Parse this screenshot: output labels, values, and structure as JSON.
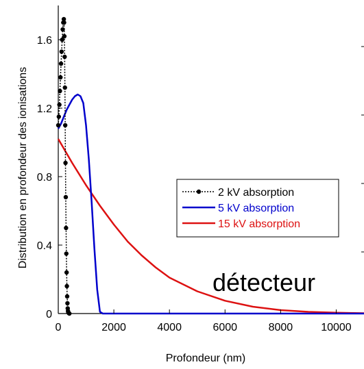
{
  "chart_data": {
    "type": "line",
    "title": "",
    "xlabel": "Profondeur (nm)",
    "ylabel": "Distribution en profondeur des ionisations",
    "xlim": [
      0,
      11000
    ],
    "ylim": [
      0,
      1.8
    ],
    "x_ticks": [
      "0",
      "2000",
      "4000",
      "6000",
      "8000",
      "10000"
    ],
    "x_tick_values": [
      0,
      2000,
      4000,
      6000,
      8000,
      10000
    ],
    "y_ticks": [
      "0",
      "0.4",
      "0.8",
      "1.2",
      "1.6"
    ],
    "y_tick_values": [
      0,
      0.4,
      0.8,
      1.2,
      1.6
    ],
    "grid": false,
    "legend_position": "center-right",
    "annotation": "détecteur",
    "series": [
      {
        "name": "2 kV absorption",
        "color": "#000000",
        "style": "dotted-markers",
        "x": [
          0,
          20,
          40,
          60,
          80,
          100,
          120,
          140,
          160,
          180,
          200,
          210,
          220,
          230,
          240,
          250,
          260,
          270,
          280,
          290,
          300,
          310,
          320,
          330,
          340,
          350,
          360,
          380,
          400
        ],
        "y": [
          1.1,
          1.15,
          1.22,
          1.3,
          1.38,
          1.46,
          1.53,
          1.6,
          1.66,
          1.7,
          1.72,
          1.7,
          1.62,
          1.5,
          1.32,
          1.1,
          0.88,
          0.68,
          0.5,
          0.35,
          0.24,
          0.16,
          0.1,
          0.06,
          0.03,
          0.015,
          0.007,
          0.002,
          0
        ]
      },
      {
        "name": "5 kV absorption",
        "color": "#0000cc",
        "style": "solid",
        "x": [
          0,
          100,
          200,
          300,
          400,
          500,
          600,
          700,
          800,
          900,
          1000,
          1100,
          1200,
          1300,
          1400,
          1500,
          1600,
          2000,
          11000
        ],
        "y": [
          1.08,
          1.11,
          1.15,
          1.19,
          1.22,
          1.25,
          1.27,
          1.28,
          1.27,
          1.23,
          1.1,
          0.9,
          0.65,
          0.38,
          0.14,
          0.01,
          0,
          0,
          0
        ]
      },
      {
        "name": "15 kV absorption",
        "color": "#dd1111",
        "style": "solid",
        "x": [
          0,
          500,
          1000,
          1500,
          2000,
          2500,
          3000,
          3500,
          4000,
          5000,
          6000,
          7000,
          8000,
          9000,
          10000,
          11000
        ],
        "y": [
          1.02,
          0.88,
          0.75,
          0.63,
          0.52,
          0.42,
          0.34,
          0.27,
          0.21,
          0.13,
          0.075,
          0.04,
          0.02,
          0.01,
          0.005,
          0.002
        ]
      }
    ]
  }
}
